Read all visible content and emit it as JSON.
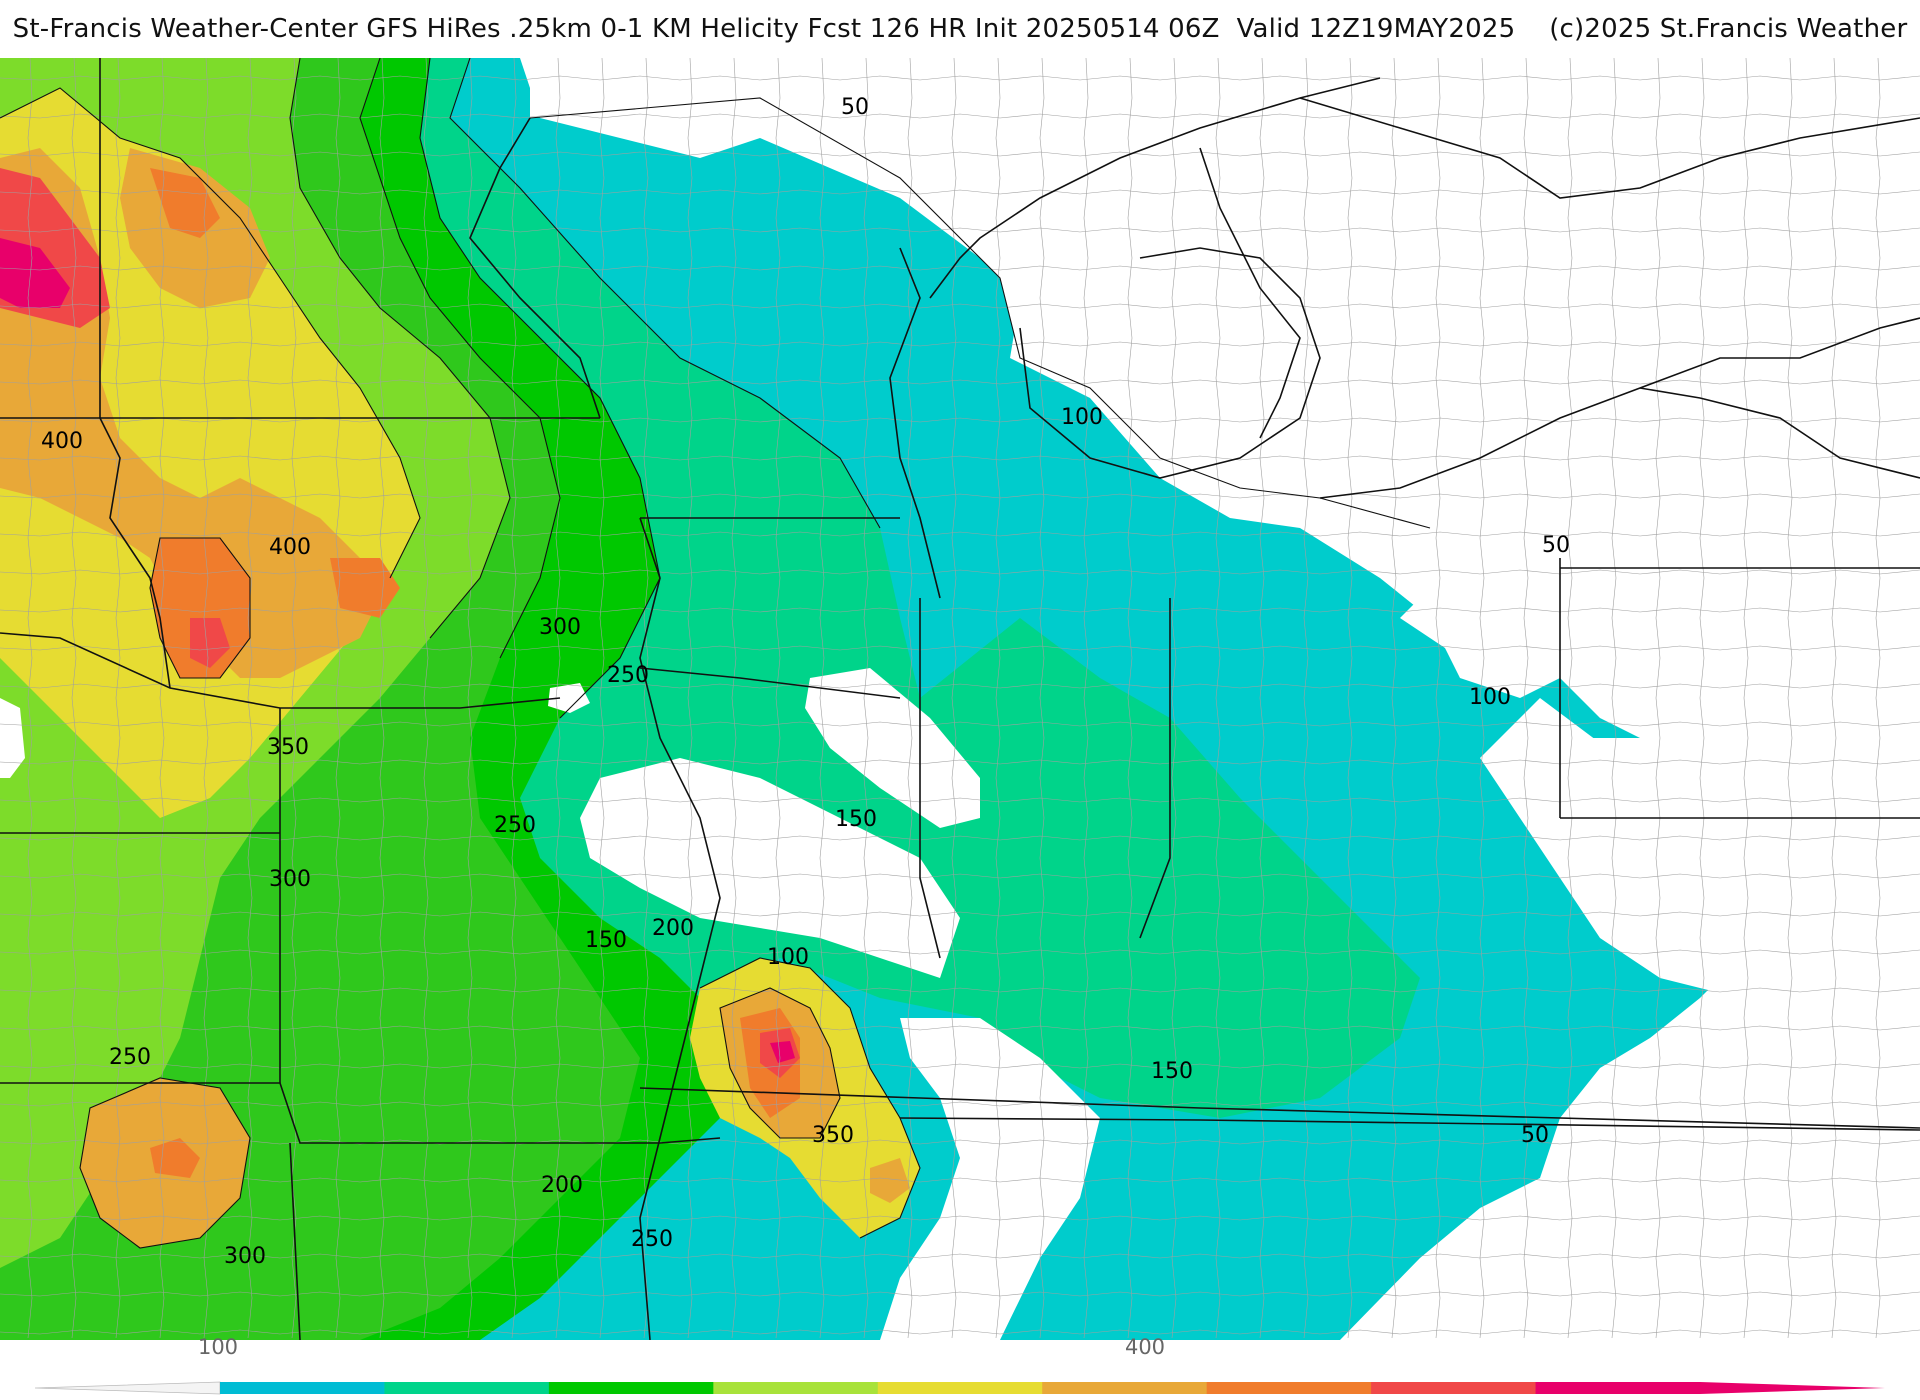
{
  "title": "St-Francis Weather-Center GFS HiRes .25km 0-1 KM Helicity Fcst 126 HR Init 20250514 06Z  Valid 12Z19MAY2025    (c)2025 St.Francis Weather",
  "colors": {
    "c50": "#00cccc",
    "c100": "#00d48a",
    "c150": "#00c800",
    "c200": "#2fc81c",
    "c250": "#7ddc2a",
    "c300": "#a8e23a",
    "c350": "#e6dc32",
    "c400": "#e8a838",
    "c450": "#f07c2c",
    "c500": "#f04848",
    "c550": "#e8006a",
    "border": "#111111",
    "county": "#9a9a9a"
  },
  "contour_labels": [
    {
      "text": "50",
      "id": "l50a"
    },
    {
      "text": "100",
      "id": "l100a"
    },
    {
      "text": "50",
      "id": "l50b"
    },
    {
      "text": "100",
      "id": "l100b"
    },
    {
      "text": "400",
      "id": "l400a"
    },
    {
      "text": "400",
      "id": "l400b"
    },
    {
      "text": "300",
      "id": "l300a"
    },
    {
      "text": "250",
      "id": "l250a"
    },
    {
      "text": "350",
      "id": "l350a"
    },
    {
      "text": "250",
      "id": "l250b"
    },
    {
      "text": "150",
      "id": "l150a"
    },
    {
      "text": "300",
      "id": "l300b"
    },
    {
      "text": "200",
      "id": "l200a"
    },
    {
      "text": "150",
      "id": "l150b"
    },
    {
      "text": "100",
      "id": "l100c"
    },
    {
      "text": "150",
      "id": "l150c"
    },
    {
      "text": "250",
      "id": "l250c"
    },
    {
      "text": "350",
      "id": "l350b"
    },
    {
      "text": "50",
      "id": "l50c"
    },
    {
      "text": "200",
      "id": "l200b"
    },
    {
      "text": "250",
      "id": "l250d"
    },
    {
      "text": "300",
      "id": "l300c"
    }
  ],
  "colorbar": {
    "ticks": [
      {
        "label": "100",
        "id": "t100"
      },
      {
        "label": "400",
        "id": "t400"
      }
    ],
    "bins": [
      "#00bcd4",
      "#00d48a",
      "#00c800",
      "#a8e23a",
      "#e6dc32",
      "#e8a838",
      "#f07c2c",
      "#f04848",
      "#e8006a"
    ]
  }
}
